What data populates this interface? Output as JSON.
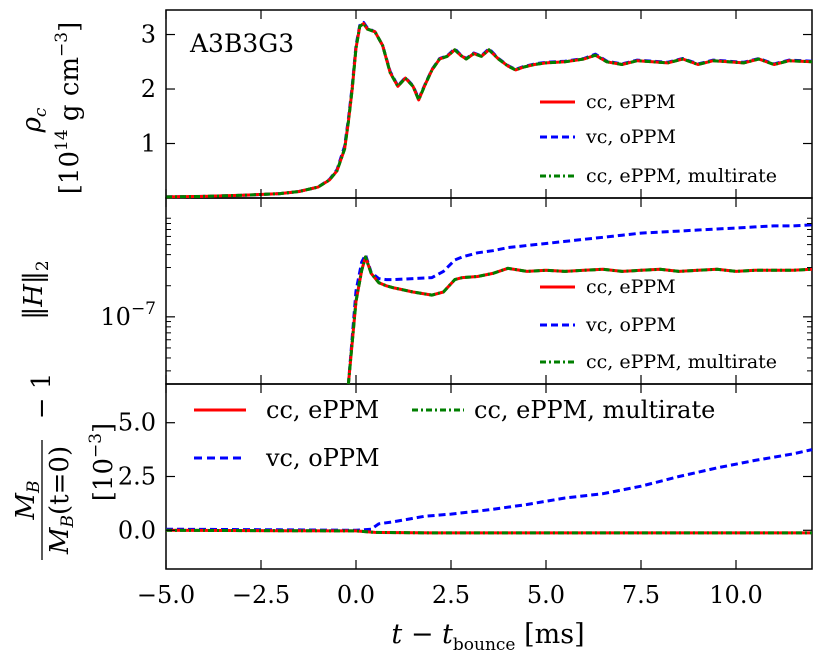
{
  "chart_data": [
    {
      "type": "line",
      "panel": "density",
      "title": "A3B3G3",
      "ylabel_symbol": "ρ",
      "ylabel_subscript": "c",
      "ylabel_units_open": "[10",
      "ylabel_units_exp": "14",
      "ylabel_units_mid": " g cm",
      "ylabel_units_exp2": "−3",
      "ylabel_units_close": "]",
      "ylim": [
        0,
        3.45
      ],
      "yticks": [
        1,
        2,
        3
      ],
      "ytick_labels": [
        "1",
        "2",
        "3"
      ],
      "legend": [
        "cc, ePPM",
        "vc, oPPM",
        "cc, ePPM, multirate"
      ],
      "legend_placement": "lower-right",
      "series": [
        {
          "name": "cc, ePPM",
          "color": "#ff0000",
          "style": "solid",
          "x": [
            -5,
            -4,
            -3,
            -2,
            -1.5,
            -1,
            -0.7,
            -0.5,
            -0.3,
            -0.2,
            -0.1,
            0,
            0.1,
            0.2,
            0.3,
            0.5,
            0.7,
            0.9,
            1.1,
            1.3,
            1.5,
            1.65,
            1.8,
            2.0,
            2.2,
            2.4,
            2.6,
            2.75,
            2.9,
            3.1,
            3.3,
            3.5,
            3.75,
            4.0,
            4.2,
            4.4,
            4.7,
            5.0,
            5.5,
            6.0,
            6.3,
            6.6,
            7.0,
            7.4,
            7.8,
            8.2,
            8.6,
            9.0,
            9.4,
            9.8,
            10.2,
            10.6,
            11.0,
            11.4,
            12.0
          ],
          "y": [
            0.02,
            0.03,
            0.05,
            0.08,
            0.12,
            0.2,
            0.33,
            0.5,
            0.9,
            1.4,
            2.0,
            2.75,
            3.15,
            3.2,
            3.1,
            3.05,
            2.8,
            2.3,
            2.05,
            2.2,
            2.05,
            1.8,
            2.05,
            2.35,
            2.55,
            2.6,
            2.72,
            2.62,
            2.55,
            2.65,
            2.6,
            2.72,
            2.55,
            2.42,
            2.35,
            2.4,
            2.45,
            2.48,
            2.5,
            2.55,
            2.62,
            2.5,
            2.45,
            2.52,
            2.5,
            2.48,
            2.55,
            2.45,
            2.52,
            2.5,
            2.48,
            2.55,
            2.45,
            2.52,
            2.5
          ]
        },
        {
          "name": "vc, oPPM",
          "color": "#0000ff",
          "style": "dashed",
          "x": [
            -5,
            -4,
            -3,
            -2,
            -1.5,
            -1,
            -0.7,
            -0.5,
            -0.3,
            -0.2,
            -0.1,
            0,
            0.1,
            0.2,
            0.3,
            0.5,
            0.7,
            0.9,
            1.1,
            1.3,
            1.5,
            1.65,
            1.8,
            2.0,
            2.2,
            2.4,
            2.6,
            2.75,
            2.9,
            3.1,
            3.3,
            3.5,
            3.75,
            4.0,
            4.2,
            4.4,
            4.7,
            5.0,
            5.5,
            6.0,
            6.3,
            6.6,
            7.0,
            7.4,
            7.8,
            8.2,
            8.6,
            9.0,
            9.4,
            9.8,
            10.2,
            10.6,
            11.0,
            11.4,
            12.0
          ],
          "y": [
            0.02,
            0.03,
            0.05,
            0.08,
            0.12,
            0.2,
            0.34,
            0.52,
            0.95,
            1.45,
            2.05,
            2.8,
            3.17,
            3.22,
            3.12,
            3.05,
            2.8,
            2.32,
            2.06,
            2.21,
            2.06,
            1.82,
            2.06,
            2.36,
            2.56,
            2.61,
            2.74,
            2.63,
            2.56,
            2.66,
            2.61,
            2.74,
            2.56,
            2.43,
            2.36,
            2.41,
            2.46,
            2.49,
            2.51,
            2.56,
            2.64,
            2.51,
            2.46,
            2.53,
            2.51,
            2.49,
            2.56,
            2.46,
            2.53,
            2.51,
            2.49,
            2.56,
            2.46,
            2.53,
            2.51
          ]
        },
        {
          "name": "cc, ePPM, multirate",
          "color": "#007f00",
          "style": "dashdot",
          "x": [
            -5,
            -4,
            -3,
            -2,
            -1.5,
            -1,
            -0.7,
            -0.5,
            -0.3,
            -0.2,
            -0.1,
            0,
            0.1,
            0.2,
            0.3,
            0.5,
            0.7,
            0.9,
            1.1,
            1.3,
            1.5,
            1.65,
            1.8,
            2.0,
            2.2,
            2.4,
            2.6,
            2.75,
            2.9,
            3.1,
            3.3,
            3.5,
            3.75,
            4.0,
            4.2,
            4.4,
            4.7,
            5.0,
            5.5,
            6.0,
            6.3,
            6.6,
            7.0,
            7.4,
            7.8,
            8.2,
            8.6,
            9.0,
            9.4,
            9.8,
            10.2,
            10.6,
            11.0,
            11.4,
            12.0
          ],
          "y": [
            0.02,
            0.03,
            0.05,
            0.08,
            0.12,
            0.2,
            0.33,
            0.5,
            0.9,
            1.4,
            2.0,
            2.75,
            3.15,
            3.2,
            3.1,
            3.05,
            2.8,
            2.3,
            2.05,
            2.2,
            2.05,
            1.8,
            2.05,
            2.35,
            2.55,
            2.6,
            2.72,
            2.62,
            2.55,
            2.65,
            2.6,
            2.72,
            2.55,
            2.42,
            2.35,
            2.4,
            2.45,
            2.48,
            2.5,
            2.55,
            2.62,
            2.5,
            2.45,
            2.52,
            2.5,
            2.48,
            2.55,
            2.45,
            2.52,
            2.5,
            2.48,
            2.55,
            2.45,
            2.52,
            2.5
          ]
        }
      ]
    },
    {
      "type": "line",
      "panel": "constraint",
      "ylabel": "‖H‖",
      "ylabel_subscript": "2",
      "yscale": "log",
      "ylim_log10": [
        -7.65,
        -5.85
      ],
      "yticks_log10": [
        -7
      ],
      "ytick_base": "10",
      "ytick_exp": [
        "−7"
      ],
      "legend": [
        "cc, ePPM",
        "vc, oPPM",
        "cc, ePPM, multirate"
      ],
      "legend_placement": "lower-right",
      "series": [
        {
          "name": "cc, ePPM",
          "color": "#ff0000",
          "style": "solid",
          "x": [
            -0.2,
            0.0,
            0.15,
            0.25,
            0.4,
            0.6,
            0.8,
            1.0,
            1.5,
            2.0,
            2.3,
            2.6,
            2.8,
            3.2,
            3.6,
            4.0,
            4.5,
            5.0,
            5.5,
            6.0,
            6.5,
            7.0,
            7.5,
            8.0,
            8.5,
            9.0,
            9.5,
            10.0,
            10.5,
            11.0,
            11.5,
            12.0
          ],
          "y": [
            -7.65,
            -6.85,
            -6.55,
            -6.42,
            -6.58,
            -6.67,
            -6.7,
            -6.72,
            -6.76,
            -6.79,
            -6.76,
            -6.64,
            -6.62,
            -6.61,
            -6.58,
            -6.53,
            -6.56,
            -6.55,
            -6.56,
            -6.55,
            -6.54,
            -6.56,
            -6.55,
            -6.54,
            -6.56,
            -6.55,
            -6.54,
            -6.56,
            -6.55,
            -6.55,
            -6.55,
            -6.54
          ]
        },
        {
          "name": "vc, oPPM",
          "color": "#0000ff",
          "style": "dashed",
          "x": [
            -0.2,
            0.0,
            0.15,
            0.25,
            0.4,
            0.6,
            0.8,
            1.0,
            1.5,
            2.0,
            2.3,
            2.6,
            2.8,
            3.2,
            3.6,
            4.0,
            4.5,
            5.0,
            5.5,
            6.0,
            6.5,
            7.0,
            7.5,
            8.0,
            8.5,
            9.0,
            9.5,
            10.0,
            10.5,
            11.0,
            11.5,
            12.0
          ],
          "y": [
            -7.65,
            -6.75,
            -6.47,
            -6.4,
            -6.57,
            -6.63,
            -6.64,
            -6.64,
            -6.63,
            -6.62,
            -6.56,
            -6.45,
            -6.42,
            -6.38,
            -6.36,
            -6.33,
            -6.31,
            -6.29,
            -6.27,
            -6.25,
            -6.23,
            -6.21,
            -6.19,
            -6.18,
            -6.17,
            -6.16,
            -6.15,
            -6.14,
            -6.13,
            -6.12,
            -6.12,
            -6.11
          ]
        },
        {
          "name": "cc, ePPM, multirate",
          "color": "#007f00",
          "style": "dashdot",
          "x": [
            -0.2,
            0.0,
            0.15,
            0.25,
            0.4,
            0.6,
            0.8,
            1.0,
            1.5,
            2.0,
            2.3,
            2.6,
            2.8,
            3.2,
            3.6,
            4.0,
            4.5,
            5.0,
            5.5,
            6.0,
            6.5,
            7.0,
            7.5,
            8.0,
            8.5,
            9.0,
            9.5,
            10.0,
            10.5,
            11.0,
            11.5,
            12.0
          ],
          "y": [
            -7.65,
            -6.85,
            -6.55,
            -6.42,
            -6.58,
            -6.67,
            -6.7,
            -6.72,
            -6.76,
            -6.79,
            -6.76,
            -6.64,
            -6.62,
            -6.61,
            -6.58,
            -6.53,
            -6.56,
            -6.55,
            -6.56,
            -6.55,
            -6.54,
            -6.56,
            -6.55,
            -6.54,
            -6.56,
            -6.55,
            -6.54,
            -6.56,
            -6.55,
            -6.55,
            -6.55,
            -6.54
          ]
        }
      ]
    },
    {
      "type": "line",
      "panel": "baryon-mass",
      "ylabel_num": "M",
      "ylabel_num_sub": "B",
      "ylabel_den": "M",
      "ylabel_den_sub": "B",
      "ylabel_den_arg": "(t=0)",
      "ylabel_minus": "− 1",
      "ylabel_units": "[10",
      "ylabel_units_exp": "−3",
      "ylabel_units_close": "]",
      "ylim": [
        -1.8,
        6.8
      ],
      "yticks": [
        0.0,
        2.5,
        5.0
      ],
      "ytick_labels": [
        "0.0",
        "2.5",
        "5.0"
      ],
      "legend": [
        "cc, ePPM",
        "cc, ePPM, multirate",
        "vc, oPPM"
      ],
      "legend_placement": "top",
      "series": [
        {
          "name": "cc, ePPM",
          "color": "#ff0000",
          "style": "solid",
          "x": [
            -5,
            -2,
            0,
            0.5,
            2,
            5,
            8,
            12
          ],
          "y": [
            0.0,
            -0.02,
            -0.03,
            -0.1,
            -0.12,
            -0.12,
            -0.12,
            -0.12
          ]
        },
        {
          "name": "vc, oPPM",
          "color": "#0000ff",
          "style": "dashed",
          "x": [
            -5,
            -2,
            0,
            0.4,
            0.6,
            1.0,
            1.8,
            2.5,
            3.5,
            4.5,
            5.5,
            6.5,
            7.5,
            8.5,
            9.5,
            10.5,
            11.5,
            12.0
          ],
          "y": [
            0.05,
            0.02,
            0.0,
            0.05,
            0.3,
            0.4,
            0.65,
            0.75,
            0.95,
            1.2,
            1.5,
            1.7,
            2.05,
            2.5,
            2.9,
            3.25,
            3.55,
            3.75
          ]
        },
        {
          "name": "cc, ePPM, multirate",
          "color": "#007f00",
          "style": "dashdot",
          "x": [
            -5,
            -2,
            0,
            0.5,
            2,
            5,
            8,
            12
          ],
          "y": [
            0.0,
            -0.02,
            -0.03,
            -0.1,
            -0.12,
            -0.12,
            -0.12,
            -0.12
          ]
        }
      ]
    }
  ],
  "shared_xaxis": {
    "xlim": [
      -5.0,
      12.0
    ],
    "xticks": [
      -5.0,
      -2.5,
      0.0,
      2.5,
      5.0,
      7.5,
      10.0
    ],
    "xtick_labels": [
      "−5.0",
      "−2.5",
      "0.0",
      "2.5",
      "5.0",
      "7.5",
      "10.0"
    ],
    "xlabel_a": "t − t",
    "xlabel_sub": "bounce",
    "xlabel_b": " [ms]"
  }
}
